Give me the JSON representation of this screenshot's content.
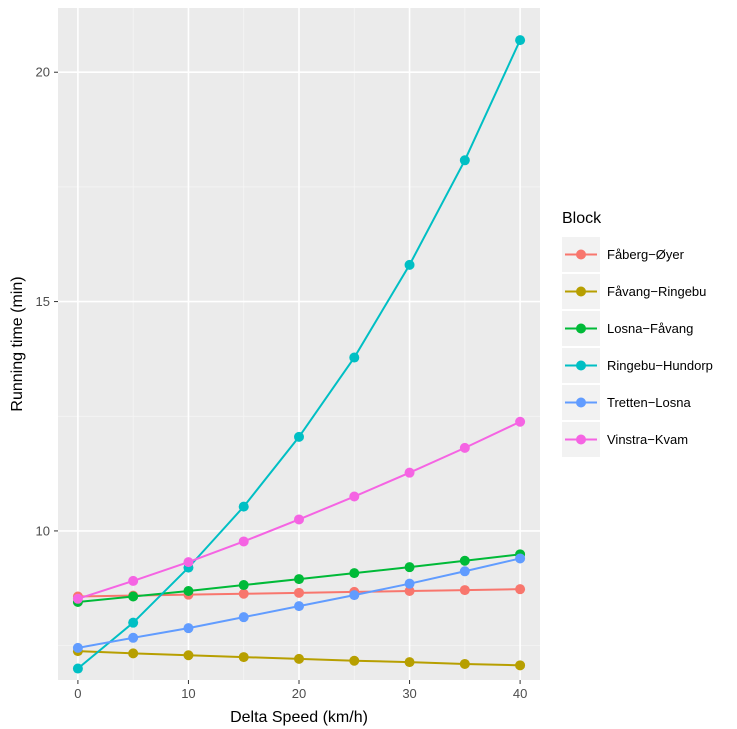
{
  "chart_data": {
    "type": "line",
    "title": "",
    "xlabel": "Delta Speed (km/h)",
    "ylabel": "Running time (min)",
    "xlim": [
      -1.8,
      41.8
    ],
    "ylim": [
      6.75,
      21.4
    ],
    "x_ticks": [
      0,
      10,
      20,
      30,
      40
    ],
    "y_ticks": [
      10,
      15,
      20
    ],
    "grid": true,
    "legend_title": "Block",
    "legend_position": "right",
    "x": [
      0,
      5,
      10,
      15,
      20,
      25,
      30,
      35,
      40
    ],
    "series": [
      {
        "name": "Fåberg−Øyer",
        "color": "#F8766D",
        "values": [
          8.57,
          8.59,
          8.61,
          8.63,
          8.65,
          8.67,
          8.69,
          8.71,
          8.73
        ]
      },
      {
        "name": "Fåvang−Ringebu",
        "color": "#B79F00",
        "values": [
          7.38,
          7.33,
          7.29,
          7.25,
          7.21,
          7.17,
          7.14,
          7.1,
          7.07
        ]
      },
      {
        "name": "Losna−Fåvang",
        "color": "#00BA38",
        "values": [
          8.45,
          8.57,
          8.69,
          8.82,
          8.95,
          9.08,
          9.21,
          9.35,
          9.49
        ]
      },
      {
        "name": "Ringebu−Hundorp",
        "color": "#00BFC4",
        "values": [
          7.0,
          8.0,
          9.2,
          10.53,
          12.05,
          13.78,
          15.8,
          18.08,
          20.7
        ]
      },
      {
        "name": "Tretten−Losna",
        "color": "#619CFF",
        "values": [
          7.45,
          7.67,
          7.88,
          8.12,
          8.36,
          8.6,
          8.85,
          9.12,
          9.4
        ]
      },
      {
        "name": "Vinstra−Kvam",
        "color": "#F564E3",
        "values": [
          8.52,
          8.91,
          9.32,
          9.77,
          10.25,
          10.75,
          11.27,
          11.81,
          12.38
        ]
      }
    ]
  }
}
